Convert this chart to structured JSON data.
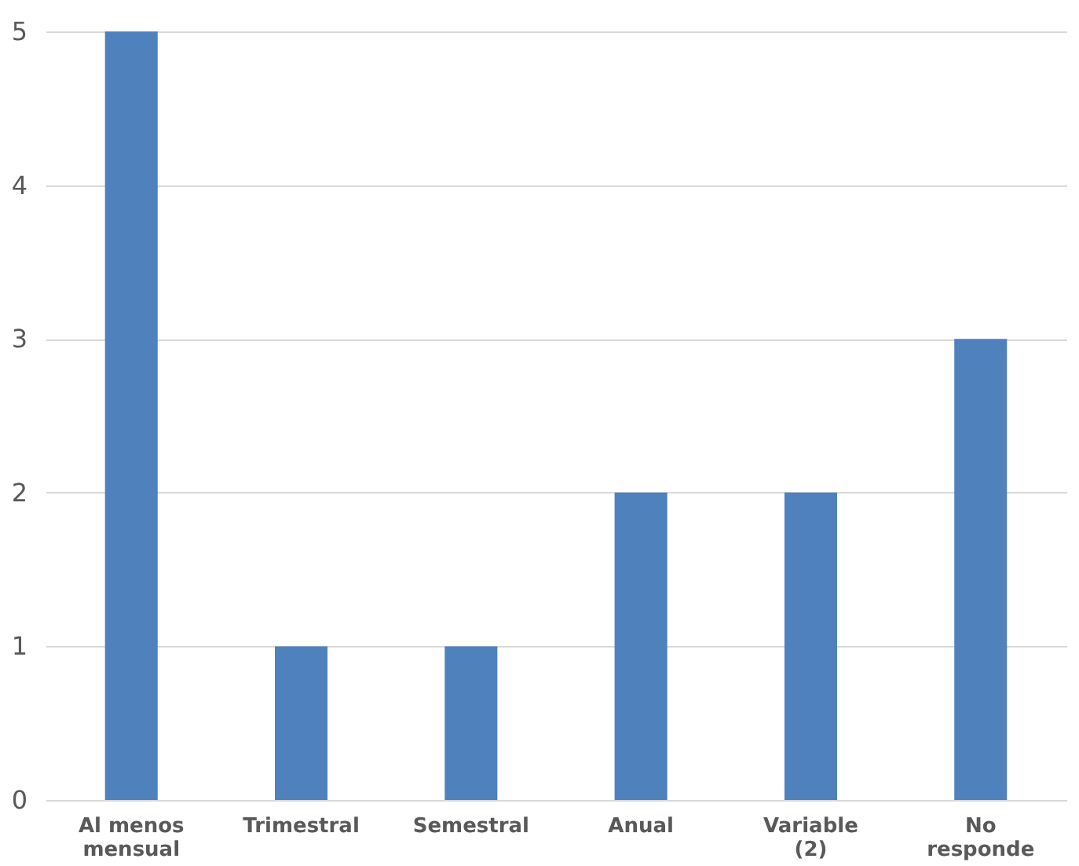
{
  "chart_data": {
    "type": "bar",
    "categories": [
      "Al menos mensual",
      "Trimestral",
      "Semestral",
      "Anual",
      "Variable (2)",
      "No responde"
    ],
    "values": [
      5,
      1,
      1,
      2,
      2,
      3
    ],
    "color": "#4f81bd",
    "ylim": [
      0,
      5
    ],
    "yticks": [
      0,
      1,
      2,
      3,
      4,
      5
    ],
    "grid": "y"
  }
}
